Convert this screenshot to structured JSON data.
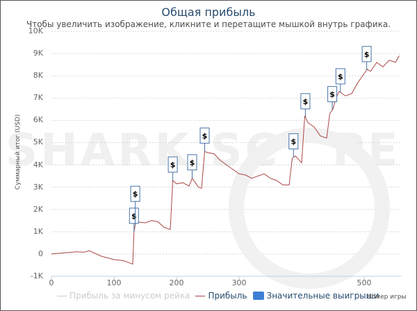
{
  "header": {
    "title": "Общая прибыль",
    "subtitle": "Чтобы увеличить изображение, кликните и перетащите мышкой внутрь графика."
  },
  "watermark": {
    "left": "SHARK SC",
    "right": "PE"
  },
  "axes": {
    "y_label": "Суммарный итог (USD)",
    "x_label": "Номер игры",
    "y_ticks": [
      "10K",
      "9K",
      "8K",
      "7K",
      "6K",
      "5K",
      "4K",
      "3K",
      "2K",
      "1K",
      "0",
      "-1K"
    ],
    "x_ticks": [
      "0",
      "100",
      "200",
      "300",
      "400",
      "500"
    ]
  },
  "legend": {
    "items": [
      {
        "label": "Прибыль за минусом рейка",
        "color": "#cccccc",
        "type": "line"
      },
      {
        "label": "Прибыль",
        "color": "#aa4643",
        "type": "line"
      },
      {
        "label": "Значительные выигрыши",
        "color": "#4572a7",
        "type": "box"
      }
    ]
  },
  "flag_symbol": "$",
  "chart_data": {
    "type": "line",
    "title": "Общая прибыль",
    "subtitle": "Чтобы увеличить изображение, кликните и перетащите мышкой внутрь графика.",
    "xlabel": "Номер игры",
    "ylabel": "Суммарный итог (USD)",
    "xlim": [
      0,
      560
    ],
    "ylim": [
      -1000,
      10000
    ],
    "grid": true,
    "legend_position": "bottom",
    "series": [
      {
        "name": "Прибыль",
        "color": "#aa4643",
        "x": [
          0,
          20,
          40,
          50,
          55,
          60,
          80,
          100,
          115,
          125,
          130,
          132,
          135,
          150,
          160,
          170,
          180,
          190,
          194,
          200,
          210,
          220,
          225,
          235,
          240,
          245,
          250,
          260,
          270,
          280,
          290,
          300,
          310,
          320,
          340,
          350,
          360,
          370,
          380,
          385,
          390,
          400,
          405,
          410,
          420,
          430,
          440,
          445,
          450,
          455,
          460,
          470,
          480,
          490,
          500,
          505,
          510,
          520,
          530,
          540,
          550,
          556
        ],
        "values": [
          0,
          50,
          100,
          80,
          100,
          150,
          -100,
          -250,
          -300,
          -400,
          -450,
          1000,
          1450,
          1400,
          1500,
          1450,
          1200,
          1100,
          3300,
          3150,
          3200,
          3050,
          3400,
          3000,
          2950,
          4600,
          4550,
          4500,
          4200,
          4000,
          3800,
          3600,
          3550,
          3400,
          3600,
          3400,
          3300,
          3100,
          3100,
          4300,
          4400,
          4100,
          6200,
          5900,
          5700,
          5300,
          5200,
          6300,
          6500,
          7000,
          7300,
          7100,
          7200,
          7700,
          8100,
          8300,
          8200,
          8600,
          8400,
          8700,
          8600,
          8900
        ]
      },
      {
        "name": "Прибыль за минусом рейка",
        "color": "#cccccc",
        "x": [],
        "values": []
      }
    ],
    "significant_wins_x": [
      132,
      134,
      194,
      225,
      245,
      387,
      406,
      449,
      462,
      504
    ]
  }
}
